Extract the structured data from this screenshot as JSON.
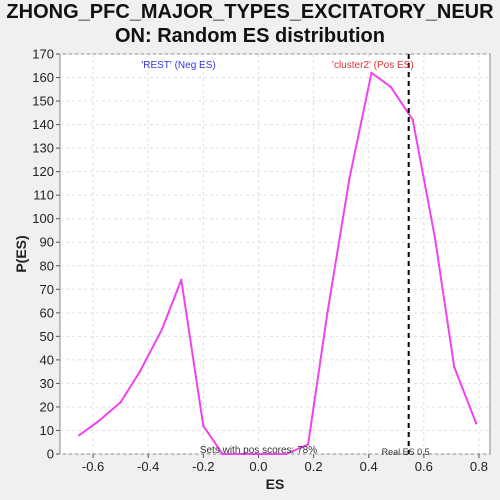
{
  "chart_data": {
    "type": "line",
    "title_lines": [
      "ZHONG_PFC_MAJOR_TYPES_EXCITATORY_NEUR",
      "ON: Random ES distribution"
    ],
    "xlabel": "ES",
    "ylabel": "P(ES)",
    "xlim": [
      -0.72,
      0.84
    ],
    "ylim": [
      0,
      170
    ],
    "xticks": [
      -0.6,
      -0.4,
      -0.2,
      0.0,
      0.2,
      0.4,
      0.6,
      0.8
    ],
    "xtick_labels": [
      "-0.6",
      "-0.4",
      "-0.2",
      "0.0",
      "0.2",
      "0.4",
      "0.6",
      "0.8"
    ],
    "yticks": [
      0,
      10,
      20,
      30,
      40,
      50,
      60,
      70,
      80,
      90,
      100,
      110,
      120,
      130,
      140,
      150,
      160,
      170
    ],
    "grid": true,
    "series": [
      {
        "color": "#ee44ee",
        "x": [
          -0.65,
          -0.58,
          -0.5,
          -0.43,
          -0.35,
          -0.28,
          -0.2,
          -0.13,
          -0.05,
          0.03,
          0.1,
          0.18,
          0.25,
          0.33,
          0.41,
          0.48,
          0.56,
          0.64,
          0.71,
          0.79
        ],
        "y": [
          8,
          14,
          22,
          35,
          53,
          74,
          12,
          0,
          0,
          0,
          0,
          4,
          60,
          117,
          162,
          156,
          142,
          92,
          37,
          13
        ]
      }
    ],
    "vline": {
      "x": 0.545,
      "color": "#000000",
      "style": "dashed"
    },
    "annotations": {
      "neg_label": "'REST' (Neg ES)",
      "pos_label": "'cluster2' (Pos ES)",
      "pos_scores": "Sets with pos scores: 78%",
      "real_es": "Real ES 0.5"
    },
    "colors": {
      "neg_label": "#3333dd",
      "pos_label": "#dd3333",
      "line": "#ee44ee"
    }
  }
}
